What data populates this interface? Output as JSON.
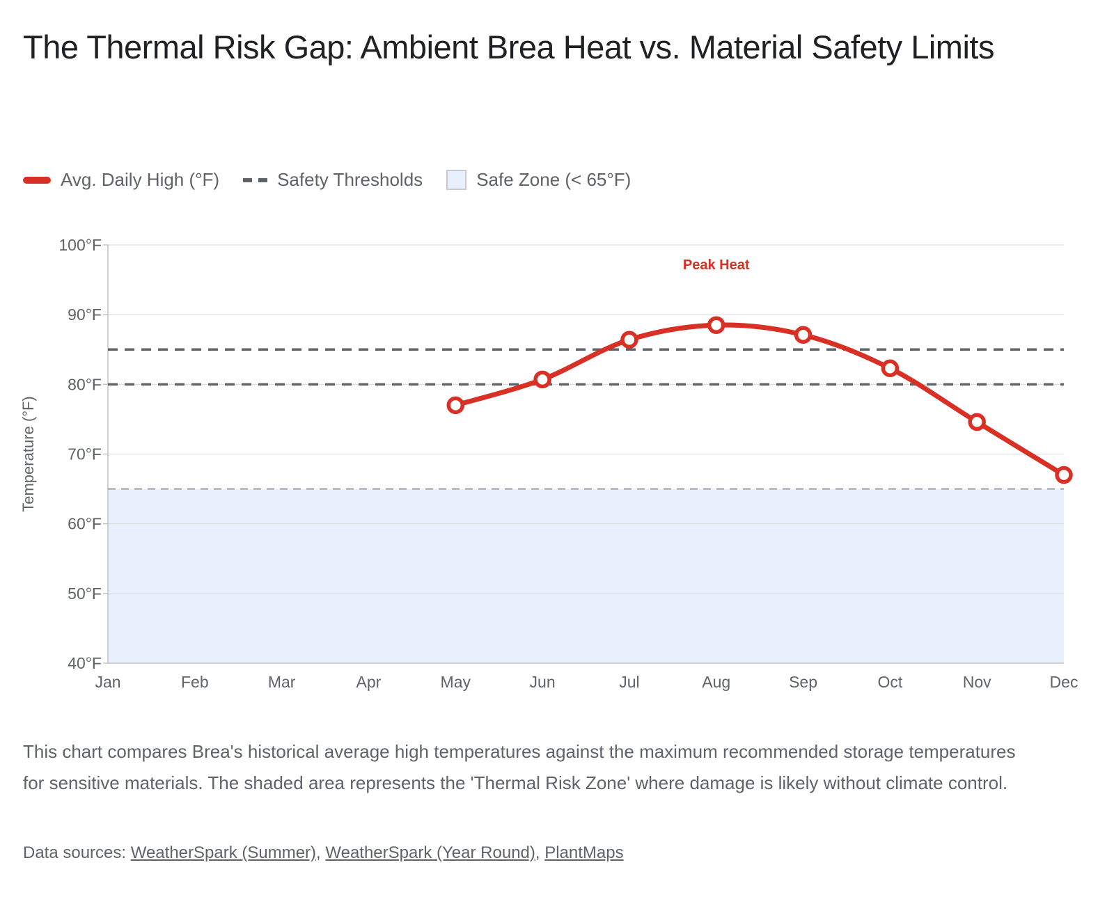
{
  "page": {
    "title": "The Thermal Risk Gap: Ambient Brea Heat vs. Material Safety Limits"
  },
  "legend": {
    "items": [
      {
        "label": "Avg. Daily High (°F)",
        "swatch": "line"
      },
      {
        "label": "Safety Thresholds",
        "swatch": "dashed"
      },
      {
        "label": "Safe Zone (< 65°F)",
        "swatch": "box"
      }
    ]
  },
  "colors": {
    "series_red": "#d93025",
    "threshold_gray": "#5f6368",
    "safe_zone_fill": "#e8f0fe",
    "safe_zone_border": "#c6cacf",
    "safe_zone_line": "#9aa0a6",
    "grid": "#d9d9d9",
    "axis": "#c2c2c2",
    "tick_text": "#5f6368",
    "title_text": "#202124"
  },
  "chart_data": {
    "type": "line",
    "title": "The Thermal Risk Gap: Ambient Brea Heat vs. Material Safety Limits",
    "x": [
      "Jan",
      "Feb",
      "Mar",
      "Apr",
      "May",
      "Jun",
      "Jul",
      "Aug",
      "Sep",
      "Oct",
      "Nov",
      "Dec"
    ],
    "series": [
      {
        "name": "Avg. Daily High (°F)",
        "values": [
          null,
          null,
          null,
          null,
          77,
          80.7,
          86.4,
          88.5,
          87.1,
          82.3,
          74.6,
          67
        ],
        "color": "#d93025"
      }
    ],
    "thresholds": {
      "name": "Safety Thresholds",
      "values": [
        85,
        80
      ],
      "color": "#5f6368"
    },
    "safe_zone": {
      "name": "Safe Zone (< 65°F)",
      "max": 65,
      "min": 40,
      "fill": "#e8f0fe",
      "line_color": "#9aa0a6"
    },
    "annotation": {
      "text": "Peak Heat",
      "month": "Aug",
      "value": 96.5,
      "color": "#d93025"
    },
    "xlabel": "",
    "ylabel": "Temperature (°F)",
    "ylim": [
      40,
      100
    ],
    "yticks": [
      40,
      50,
      60,
      70,
      80,
      90,
      100
    ],
    "ytick_suffix": "°F",
    "grid": true,
    "legend_position": "top"
  },
  "footer": {
    "description": "This chart compares Brea's historical average high temperatures against the maximum recommended storage temperatures for sensitive materials. The shaded area represents the 'Thermal Risk Zone' where damage is likely without climate control.",
    "sources_label": "Data sources: ",
    "separator": ", ",
    "links": [
      {
        "text": "WeatherSpark (Summer)"
      },
      {
        "text": "WeatherSpark (Year Round)"
      },
      {
        "text": "PlantMaps"
      }
    ]
  }
}
